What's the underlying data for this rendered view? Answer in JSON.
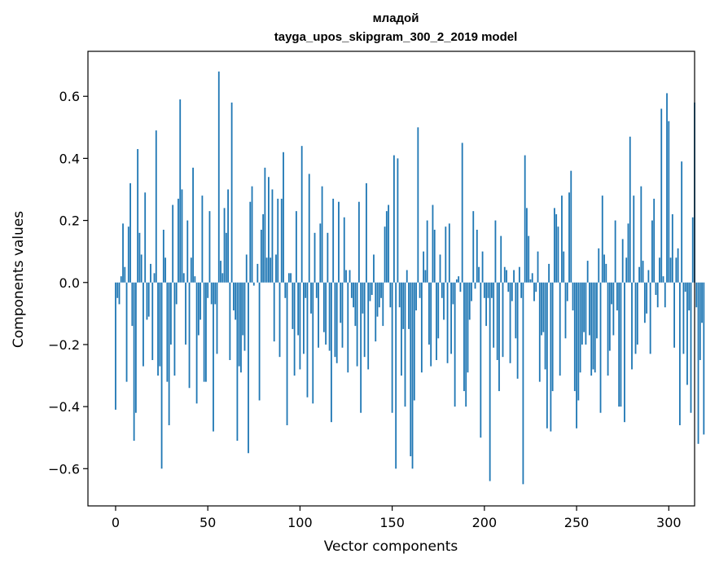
{
  "chart_data": {
    "type": "bar",
    "title": "младой",
    "subtitle": "tayga_upos_skipgram_300_2_2019 model",
    "xlabel": "Vector components",
    "ylabel": "Components values",
    "xlim": [
      -15,
      314
    ],
    "ylim": [
      -0.72,
      0.745
    ],
    "xticks": [
      0,
      50,
      100,
      150,
      200,
      250,
      300
    ],
    "xtick_labels": [
      "0",
      "50",
      "100",
      "150",
      "200",
      "250",
      "300"
    ],
    "yticks": [
      -0.6,
      -0.4,
      -0.2,
      0.0,
      0.2,
      0.4,
      0.6
    ],
    "ytick_labels": [
      "−0.6",
      "−0.4",
      "−0.2",
      "0.0",
      "0.2",
      "0.4",
      "0.6"
    ],
    "bar_color": "#1f77b4",
    "grid": false,
    "legend": "none",
    "values": [
      -0.41,
      -0.05,
      -0.07,
      0.02,
      0.19,
      0.05,
      -0.32,
      0.18,
      0.32,
      -0.14,
      -0.51,
      -0.42,
      0.43,
      0.16,
      0.09,
      -0.27,
      0.29,
      -0.12,
      -0.11,
      0.06,
      -0.25,
      0.03,
      0.49,
      -0.3,
      -0.27,
      -0.6,
      0.17,
      0.08,
      -0.32,
      -0.46,
      -0.2,
      0.25,
      -0.3,
      -0.07,
      0.27,
      0.59,
      0.3,
      0.03,
      -0.2,
      0.2,
      -0.34,
      0.08,
      0.37,
      0.02,
      -0.39,
      -0.17,
      -0.12,
      0.28,
      -0.32,
      -0.32,
      -0.05,
      0.23,
      -0.07,
      -0.48,
      -0.07,
      -0.23,
      0.68,
      0.07,
      0.03,
      0.24,
      0.16,
      0.3,
      -0.25,
      0.58,
      -0.09,
      -0.12,
      -0.51,
      -0.27,
      -0.29,
      -0.17,
      -0.22,
      0.09,
      -0.55,
      0.26,
      0.31,
      -0.01,
      0.0,
      0.06,
      -0.38,
      0.17,
      0.22,
      0.37,
      0.08,
      0.34,
      0.08,
      0.3,
      -0.19,
      0.09,
      0.27,
      -0.24,
      0.27,
      0.42,
      -0.05,
      -0.46,
      0.03,
      0.03,
      -0.15,
      -0.3,
      0.23,
      -0.17,
      -0.28,
      0.44,
      -0.23,
      -0.05,
      -0.37,
      0.35,
      -0.1,
      -0.39,
      0.16,
      -0.05,
      -0.21,
      0.19,
      0.31,
      -0.16,
      -0.2,
      0.16,
      -0.22,
      -0.45,
      0.27,
      -0.24,
      -0.26,
      0.26,
      -0.13,
      -0.21,
      0.21,
      0.04,
      -0.29,
      0.04,
      -0.05,
      -0.08,
      -0.14,
      -0.27,
      0.26,
      -0.42,
      -0.1,
      -0.24,
      0.32,
      -0.28,
      -0.06,
      -0.04,
      0.09,
      -0.19,
      -0.11,
      -0.08,
      -0.05,
      -0.14,
      0.18,
      0.23,
      0.25,
      -0.08,
      -0.42,
      0.41,
      -0.6,
      0.4,
      -0.08,
      -0.3,
      -0.15,
      -0.4,
      0.04,
      -0.15,
      -0.56,
      -0.6,
      -0.38,
      -0.09,
      0.5,
      -0.05,
      -0.29,
      0.1,
      0.04,
      0.2,
      -0.2,
      -0.27,
      0.25,
      0.17,
      -0.25,
      -0.18,
      0.09,
      -0.05,
      -0.12,
      0.18,
      -0.26,
      0.19,
      -0.23,
      -0.07,
      -0.4,
      0.01,
      0.02,
      -0.03,
      0.45,
      -0.35,
      -0.4,
      -0.29,
      -0.12,
      -0.06,
      0.23,
      -0.02,
      0.17,
      0.05,
      -0.5,
      0.1,
      -0.05,
      -0.14,
      -0.05,
      -0.64,
      -0.05,
      -0.21,
      0.2,
      -0.25,
      -0.35,
      0.15,
      -0.24,
      0.05,
      0.04,
      -0.03,
      -0.26,
      -0.06,
      0.04,
      -0.18,
      -0.31,
      0.05,
      -0.05,
      -0.65,
      0.41,
      0.24,
      0.15,
      0.01,
      0.03,
      -0.06,
      -0.03,
      0.1,
      -0.32,
      -0.17,
      -0.16,
      -0.28,
      -0.47,
      0.06,
      -0.48,
      -0.35,
      0.24,
      0.22,
      0.18,
      -0.3,
      0.28,
      0.1,
      -0.18,
      -0.06,
      0.29,
      0.36,
      -0.09,
      -0.35,
      -0.47,
      -0.38,
      -0.29,
      -0.2,
      -0.16,
      -0.2,
      0.07,
      -0.17,
      -0.3,
      -0.28,
      -0.29,
      -0.18,
      0.11,
      -0.42,
      0.28,
      0.09,
      0.06,
      -0.3,
      -0.22,
      -0.07,
      -0.17,
      0.2,
      -0.09,
      -0.4,
      -0.4,
      0.14,
      -0.45,
      0.08,
      0.19,
      0.47,
      -0.28,
      0.28,
      -0.23,
      -0.2,
      0.05,
      0.31,
      0.07,
      -0.13,
      -0.1,
      0.04,
      -0.23,
      0.2,
      0.27,
      -0.04,
      -0.08,
      0.08,
      0.56,
      0.02,
      -0.08,
      0.61,
      0.52,
      0.08,
      0.22,
      -0.21,
      0.08,
      0.11,
      -0.46,
      0.39,
      -0.23,
      -0.03,
      -0.33,
      -0.09,
      -0.42,
      0.21,
      0.58,
      -0.08,
      -0.52,
      -0.25,
      -0.13,
      -0.49
    ]
  }
}
